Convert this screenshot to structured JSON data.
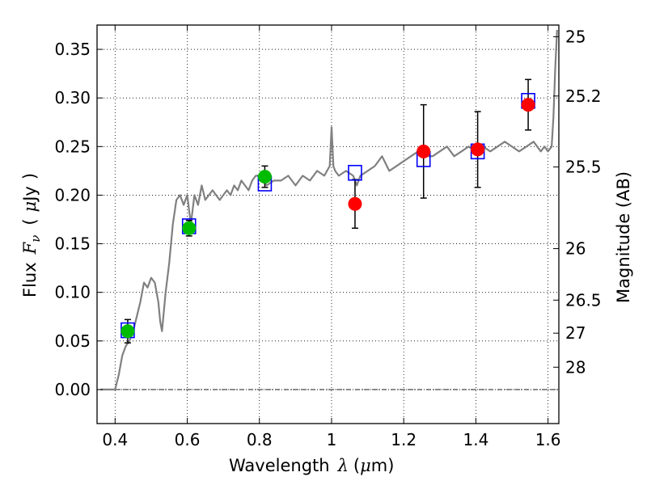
{
  "chart_data": {
    "type": "scatter",
    "xlabel": "Wavelength",
    "xlabel_symbol": "λ",
    "xlabel_unit_open": "(",
    "xlabel_unit_mu": "μ",
    "xlabel_unit_rest": "m)",
    "ylabel": "Flux",
    "ylabel_symbol": "F",
    "ylabel_subscript": "ν",
    "ylabel_unit_open": "(",
    "ylabel_unit_mu": "μ",
    "ylabel_unit_rest": "Jy",
    "ylabel_unit_close": ")",
    "y2label": "Magnitude (AB)",
    "xlim": [
      0.35,
      1.63
    ],
    "ylim": [
      -0.035,
      0.375
    ],
    "grid": true,
    "x_ticks": [
      0.4,
      0.6,
      0.8,
      1.0,
      1.2,
      1.4,
      1.6
    ],
    "x_tick_labels": [
      "0.4",
      "0.6",
      "0.8",
      "1",
      "1.2",
      "1.4",
      "1.6"
    ],
    "y_ticks": [
      0.0,
      0.05,
      0.1,
      0.15,
      0.2,
      0.25,
      0.3,
      0.35
    ],
    "y_tick_labels": [
      "0.00",
      "0.05",
      "0.10",
      "0.15",
      "0.20",
      "0.25",
      "0.30",
      "0.35"
    ],
    "y2_ticks": [
      {
        "flux": 0.363,
        "label": "25"
      },
      {
        "flux": 0.302,
        "label": "25.2"
      },
      {
        "flux": 0.229,
        "label": "25.5"
      },
      {
        "flux": 0.145,
        "label": "26"
      },
      {
        "flux": 0.092,
        "label": "26.5"
      },
      {
        "flux": 0.058,
        "label": "27"
      },
      {
        "flux": 0.023,
        "label": "28"
      }
    ],
    "series": [
      {
        "name": "SED model",
        "kind": "line",
        "color": "#808080",
        "x": [
          0.36,
          0.37,
          0.38,
          0.39,
          0.4,
          0.41,
          0.42,
          0.43,
          0.44,
          0.45,
          0.46,
          0.47,
          0.48,
          0.49,
          0.5,
          0.51,
          0.52,
          0.525,
          0.53,
          0.54,
          0.55,
          0.56,
          0.57,
          0.58,
          0.59,
          0.6,
          0.61,
          0.62,
          0.63,
          0.64,
          0.65,
          0.66,
          0.67,
          0.68,
          0.69,
          0.7,
          0.71,
          0.72,
          0.73,
          0.74,
          0.75,
          0.76,
          0.77,
          0.78,
          0.79,
          0.8,
          0.82,
          0.84,
          0.86,
          0.88,
          0.9,
          0.92,
          0.94,
          0.96,
          0.98,
          0.995,
          1.0,
          1.005,
          1.01,
          1.02,
          1.04,
          1.06,
          1.07,
          1.08,
          1.1,
          1.12,
          1.14,
          1.16,
          1.18,
          1.2,
          1.22,
          1.24,
          1.26,
          1.28,
          1.3,
          1.32,
          1.34,
          1.36,
          1.38,
          1.4,
          1.42,
          1.44,
          1.46,
          1.48,
          1.5,
          1.52,
          1.54,
          1.56,
          1.58,
          1.59,
          1.6,
          1.61,
          1.615,
          1.62,
          1.625
        ],
        "y": [
          0.0,
          0.0,
          0.0,
          0.0,
          0.0,
          0.015,
          0.035,
          0.045,
          0.05,
          0.06,
          0.075,
          0.09,
          0.11,
          0.105,
          0.115,
          0.11,
          0.09,
          0.07,
          0.06,
          0.1,
          0.13,
          0.17,
          0.195,
          0.2,
          0.19,
          0.2,
          0.17,
          0.2,
          0.19,
          0.21,
          0.195,
          0.2,
          0.205,
          0.2,
          0.195,
          0.2,
          0.205,
          0.2,
          0.21,
          0.205,
          0.215,
          0.21,
          0.205,
          0.215,
          0.22,
          0.22,
          0.21,
          0.215,
          0.215,
          0.22,
          0.21,
          0.22,
          0.215,
          0.225,
          0.22,
          0.23,
          0.27,
          0.23,
          0.225,
          0.22,
          0.225,
          0.22,
          0.21,
          0.22,
          0.225,
          0.23,
          0.24,
          0.225,
          0.23,
          0.235,
          0.24,
          0.245,
          0.24,
          0.24,
          0.245,
          0.25,
          0.24,
          0.245,
          0.25,
          0.245,
          0.25,
          0.245,
          0.25,
          0.255,
          0.25,
          0.245,
          0.25,
          0.255,
          0.245,
          0.25,
          0.245,
          0.25,
          0.28,
          0.33,
          0.37
        ]
      },
      {
        "name": "model photometry",
        "kind": "open-square",
        "color": "#0000ff",
        "x": [
          0.435,
          0.605,
          0.815,
          1.065,
          1.255,
          1.405,
          1.545
        ],
        "y": [
          0.061,
          0.168,
          0.212,
          0.223,
          0.237,
          0.245,
          0.297
        ]
      },
      {
        "name": "observed (green)",
        "kind": "filled-circle",
        "color": "#00bb00",
        "x": [
          0.435,
          0.605,
          0.815
        ],
        "y": [
          0.06,
          0.166,
          0.219
        ],
        "yerr": [
          0.012,
          0.008,
          0.011
        ]
      },
      {
        "name": "observed (red)",
        "kind": "filled-circle",
        "color": "#ff0000",
        "x": [
          1.065,
          1.255,
          1.405,
          1.545
        ],
        "y": [
          0.191,
          0.245,
          0.247,
          0.293
        ],
        "yerr": [
          0.025,
          0.048,
          0.039,
          0.026
        ]
      }
    ]
  }
}
